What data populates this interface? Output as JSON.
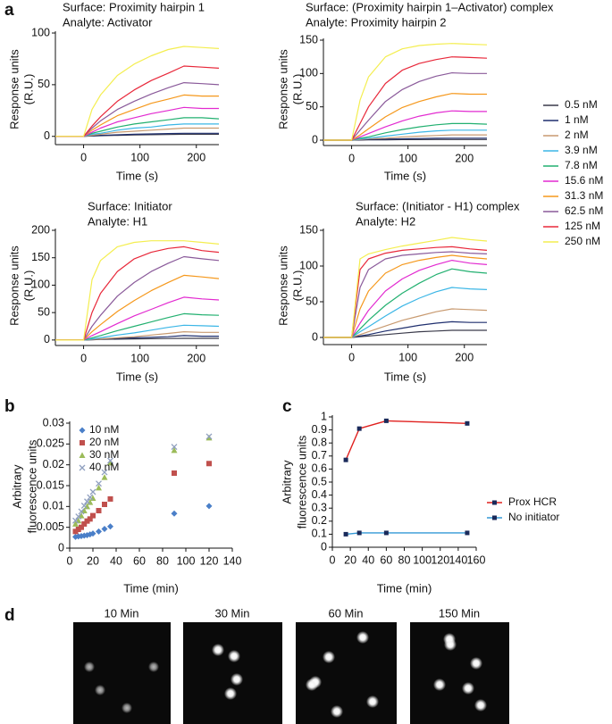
{
  "panel_labels": [
    "a",
    "b",
    "c",
    "d"
  ],
  "chart_data": [
    {
      "type": "line",
      "title": "Surface: Proximity hairpin 1",
      "subtitle": "Analyte: Activator",
      "xlabel": "Time (s)",
      "ylabel": [
        "Response units",
        "(R.U.)"
      ],
      "x": [
        -50,
        0,
        15,
        30,
        60,
        90,
        120,
        150,
        178,
        210,
        240
      ],
      "xlim": [
        -50,
        240
      ],
      "xticks": [
        0,
        100,
        200
      ],
      "ylim": [
        -8,
        100
      ],
      "yticks": [
        0,
        50,
        100
      ],
      "series": [
        {
          "values": [
            0,
            0,
            0.3,
            0.6,
            1,
            1.3,
            1.6,
            1.8,
            2,
            2,
            2
          ]
        },
        {
          "values": [
            0,
            0,
            0.5,
            1,
            1.5,
            2,
            2.4,
            2.7,
            3,
            3,
            3
          ]
        },
        {
          "values": [
            0,
            0,
            1,
            2,
            4,
            5,
            6,
            7,
            8,
            8,
            8
          ]
        },
        {
          "values": [
            0,
            0,
            2,
            3,
            6,
            8,
            9,
            11,
            12,
            12,
            12
          ]
        },
        {
          "values": [
            0,
            0,
            3,
            5,
            9,
            12,
            14,
            16,
            18,
            18,
            17
          ]
        },
        {
          "values": [
            0,
            0,
            4,
            8,
            14,
            18,
            22,
            25,
            28,
            27,
            27
          ]
        },
        {
          "values": [
            0,
            0,
            6,
            11,
            20,
            26,
            32,
            36,
            40,
            39,
            39
          ]
        },
        {
          "values": [
            0,
            0,
            8,
            15,
            26,
            34,
            41,
            47,
            52,
            51,
            50
          ]
        },
        {
          "values": [
            0,
            0,
            10,
            19,
            34,
            45,
            54,
            61,
            68,
            67,
            66
          ]
        },
        {
          "values": [
            0,
            0,
            26,
            40,
            59,
            70,
            78,
            84,
            87,
            86,
            85
          ]
        }
      ]
    },
    {
      "type": "line",
      "title": "Surface: (Proximity hairpin 1–Activator) complex",
      "subtitle": "Analyte: Proximity hairpin 2",
      "xlabel": "Time (s)",
      "ylabel": [
        "Response units",
        "(R.U.)"
      ],
      "x": [
        -50,
        0,
        15,
        30,
        60,
        90,
        120,
        150,
        178,
        210,
        240
      ],
      "xlim": [
        -50,
        240
      ],
      "xticks": [
        0,
        100,
        200
      ],
      "ylim": [
        -8,
        150
      ],
      "yticks": [
        0,
        50,
        100,
        150
      ],
      "legend": "right",
      "series": [
        {
          "name": "0.5 nM",
          "color": "#3a3a4a",
          "values": [
            0,
            0,
            0.2,
            0.4,
            0.6,
            0.8,
            0.9,
            1,
            1,
            1,
            1
          ]
        },
        {
          "name": "1 nM",
          "color": "#1f2f6e",
          "values": [
            0,
            0,
            0.5,
            1,
            1.5,
            2,
            2.5,
            2.8,
            3,
            3,
            3
          ]
        },
        {
          "name": "2 nM",
          "color": "#c89a70",
          "values": [
            0,
            0,
            1,
            2,
            3,
            5,
            6,
            7,
            8,
            8,
            8
          ]
        },
        {
          "name": "3.9 nM",
          "color": "#3bb6e6",
          "values": [
            0,
            0,
            2,
            3,
            6,
            9,
            12,
            14,
            15,
            15,
            15
          ]
        },
        {
          "name": "7.8 nM",
          "color": "#22b070",
          "values": [
            0,
            0,
            3,
            5,
            11,
            16,
            20,
            23,
            25,
            25,
            24
          ]
        },
        {
          "name": "15.6 nM",
          "color": "#e22ad0",
          "values": [
            0,
            0,
            5,
            10,
            20,
            29,
            36,
            41,
            44,
            43,
            43
          ]
        },
        {
          "name": "31.3 nM",
          "color": "#f5981c",
          "values": [
            0,
            0,
            8,
            17,
            35,
            49,
            58,
            65,
            70,
            69,
            69
          ]
        },
        {
          "name": "62.5 nM",
          "color": "#8a5a9a",
          "values": [
            0,
            0,
            15,
            30,
            58,
            76,
            88,
            96,
            101,
            100,
            100
          ]
        },
        {
          "name": "125 nM",
          "color": "#e8283a",
          "values": [
            0,
            0,
            25,
            50,
            85,
            105,
            115,
            121,
            125,
            124,
            123
          ]
        },
        {
          "name": "250 nM",
          "color": "#f4ee50",
          "values": [
            0,
            0,
            60,
            95,
            125,
            137,
            142,
            144,
            145,
            144,
            143
          ]
        }
      ]
    },
    {
      "type": "line",
      "title": "Surface: Initiator",
      "subtitle": "Analyte: H1",
      "xlabel": "Time (s)",
      "ylabel": [
        "Response units",
        "(R.U.)"
      ],
      "x": [
        -50,
        0,
        15,
        30,
        60,
        90,
        120,
        150,
        178,
        210,
        240
      ],
      "xlim": [
        -50,
        240
      ],
      "xticks": [
        0,
        100,
        200
      ],
      "ylim": [
        -10,
        200
      ],
      "yticks": [
        0,
        50,
        100,
        150,
        200
      ],
      "series": [
        {
          "values": [
            0,
            0,
            0.5,
            1,
            1.5,
            2,
            2.3,
            2.7,
            3,
            3,
            3
          ]
        },
        {
          "values": [
            0,
            0,
            1,
            2,
            3,
            4,
            5,
            6,
            8,
            7,
            7
          ]
        },
        {
          "values": [
            0,
            0,
            1,
            2,
            4,
            6,
            9,
            12,
            15,
            14,
            14
          ]
        },
        {
          "values": [
            0,
            0,
            2,
            4,
            9,
            13,
            18,
            23,
            27,
            26,
            25
          ]
        },
        {
          "values": [
            0,
            0,
            4,
            8,
            17,
            25,
            33,
            41,
            48,
            46,
            45
          ]
        },
        {
          "values": [
            0,
            0,
            8,
            15,
            30,
            44,
            56,
            68,
            78,
            75,
            73
          ]
        },
        {
          "values": [
            0,
            0,
            15,
            28,
            52,
            72,
            90,
            105,
            118,
            115,
            112
          ]
        },
        {
          "values": [
            0,
            0,
            25,
            45,
            80,
            105,
            125,
            140,
            152,
            148,
            145
          ]
        },
        {
          "values": [
            0,
            0,
            50,
            85,
            125,
            148,
            160,
            167,
            170,
            163,
            160
          ]
        },
        {
          "values": [
            0,
            0,
            110,
            145,
            170,
            178,
            181,
            181,
            181,
            178,
            175
          ]
        }
      ]
    },
    {
      "type": "line",
      "title": "Surface: (Initiator - H1) complex",
      "subtitle": "Analyte: H2",
      "xlabel": "Time (s)",
      "ylabel": [
        "Response units",
        "(R.U.)"
      ],
      "x": [
        -50,
        0,
        15,
        30,
        60,
        90,
        120,
        150,
        178,
        210,
        240
      ],
      "xlim": [
        -50,
        240
      ],
      "xticks": [
        0,
        100,
        200
      ],
      "ylim": [
        -10,
        150
      ],
      "yticks": [
        0,
        50,
        100,
        150
      ],
      "series": [
        {
          "values": [
            0,
            0,
            1,
            2,
            4,
            6,
            8,
            9,
            10,
            10,
            10
          ]
        },
        {
          "values": [
            0,
            0,
            2,
            4,
            9,
            13,
            17,
            20,
            22,
            21,
            21
          ]
        },
        {
          "values": [
            0,
            0,
            4,
            8,
            16,
            24,
            30,
            36,
            40,
            39,
            38
          ]
        },
        {
          "values": [
            0,
            0,
            8,
            15,
            30,
            44,
            55,
            64,
            70,
            68,
            67
          ]
        },
        {
          "values": [
            0,
            0,
            12,
            24,
            45,
            62,
            76,
            88,
            96,
            92,
            90
          ]
        },
        {
          "values": [
            0,
            0,
            20,
            38,
            65,
            82,
            94,
            102,
            108,
            104,
            102
          ]
        },
        {
          "values": [
            0,
            0,
            40,
            65,
            90,
            102,
            108,
            112,
            115,
            112,
            110
          ]
        },
        {
          "values": [
            0,
            0,
            70,
            95,
            110,
            115,
            117,
            119,
            120,
            118,
            117
          ]
        },
        {
          "values": [
            0,
            0,
            95,
            110,
            118,
            122,
            124,
            126,
            127,
            124,
            122
          ]
        },
        {
          "values": [
            0,
            0,
            110,
            117,
            123,
            128,
            132,
            136,
            140,
            137,
            135
          ]
        }
      ]
    },
    {
      "type": "scatter",
      "xlabel": "Time (min)",
      "ylabel": [
        "Arbitrary",
        "fluorescence units"
      ],
      "x": [
        5,
        7.5,
        10,
        12.5,
        15,
        17.5,
        20,
        25,
        30,
        35,
        90,
        120
      ],
      "xlim": [
        0,
        140
      ],
      "xticks": [
        0,
        20,
        40,
        60,
        80,
        100,
        120,
        140
      ],
      "ylim": [
        0,
        0.03
      ],
      "yticks": [
        0,
        0.005,
        0.01,
        0.015,
        0.02,
        0.025,
        0.03
      ],
      "legend": "upper left",
      "series": [
        {
          "name": "10 nM",
          "color": "#4a7fc8",
          "marker": "diamond",
          "values": [
            0.0027,
            0.0028,
            0.0029,
            0.003,
            0.0031,
            0.0033,
            0.0035,
            0.004,
            0.0046,
            0.0052,
            0.0083,
            0.0101
          ]
        },
        {
          "name": "20 nM",
          "color": "#c0504d",
          "marker": "square",
          "values": [
            0.004,
            0.0045,
            0.005,
            0.0058,
            0.0065,
            0.007,
            0.0078,
            0.009,
            0.0105,
            0.0118,
            0.018,
            0.0203
          ]
        },
        {
          "name": "30 nM",
          "color": "#9bbb59",
          "marker": "triangle",
          "values": [
            0.0058,
            0.0066,
            0.0078,
            0.009,
            0.01,
            0.011,
            0.012,
            0.0145,
            0.017,
            0.0205,
            0.0235,
            0.0265
          ]
        },
        {
          "name": "40 nM",
          "color": "#8f9fbf",
          "marker": "cross",
          "values": [
            0.0066,
            0.0076,
            0.0088,
            0.0102,
            0.0112,
            0.0122,
            0.0135,
            0.0155,
            0.0182,
            0.021,
            0.0243,
            0.0268
          ]
        }
      ]
    },
    {
      "type": "line",
      "xlabel": "Time (min)",
      "ylabel": [
        "Arbitrary",
        "fluorescence units"
      ],
      "x": [
        15,
        30,
        60,
        150
      ],
      "xlim": [
        0,
        160
      ],
      "xticks": [
        0,
        20,
        40,
        60,
        80,
        100,
        120,
        140,
        160
      ],
      "ylim": [
        0,
        1
      ],
      "yticks": [
        0,
        0.1,
        0.2,
        0.3,
        0.4,
        0.5,
        0.6,
        0.7,
        0.8,
        0.9,
        1
      ],
      "legend": "right",
      "marker_color": "#1a2a5a",
      "series": [
        {
          "name": "Prox HCR",
          "color": "#e0201e",
          "values": [
            0.67,
            0.91,
            0.97,
            0.95
          ]
        },
        {
          "name": "No initiator",
          "color": "#3399d6",
          "values": [
            0.1,
            0.11,
            0.11,
            0.11
          ]
        }
      ]
    }
  ],
  "images": {
    "labels": [
      "10 Min",
      "30 Min",
      "60 Min",
      "150 Min"
    ]
  }
}
